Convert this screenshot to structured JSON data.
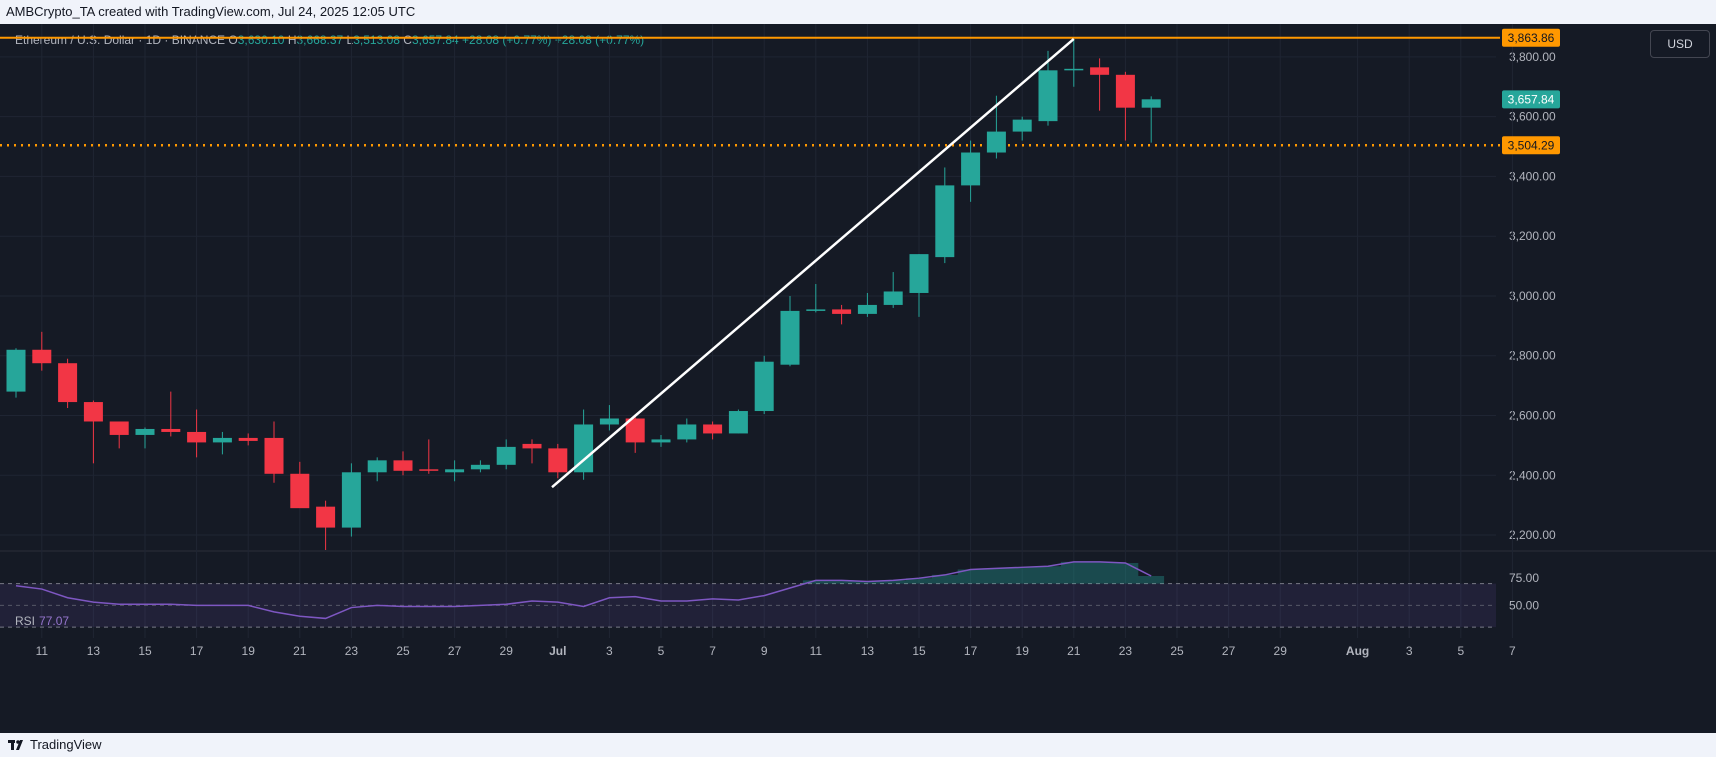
{
  "header": {
    "caption": "AMBCrypto_TA created with TradingView.com, Jul 24, 2025 12:05 UTC"
  },
  "legend": {
    "symbol": "Ethereum / U.S. Dollar · 1D · BINANCE",
    "open_label": "O",
    "open": "3,630.10",
    "high_label": "H",
    "high": "3,668.37",
    "low_label": "L",
    "low": "3,513.08",
    "close_label": "C",
    "close": "3,657.84",
    "change": "+28.08 (+0.77%)",
    "change2": "+28.08 (+0.77%)"
  },
  "currency_button": "USD",
  "rsi": {
    "label": "RSI",
    "value": "77.07"
  },
  "footer": {
    "brand": "TradingView"
  },
  "colors": {
    "up": "#26a69a",
    "down": "#f23645",
    "resistance": "#ff9800",
    "rsi_line": "#7e57c2",
    "background": "#151a25"
  },
  "chart_data": {
    "type": "candlestick",
    "y_ticks": [
      "3,800.00",
      "3,600.00",
      "3,400.00",
      "3,200.00",
      "3,000.00",
      "2,800.00",
      "2,600.00",
      "2,400.00",
      "2,200.00"
    ],
    "x_ticks": [
      "11",
      "13",
      "15",
      "17",
      "19",
      "21",
      "23",
      "25",
      "27",
      "29",
      "Jul",
      "3",
      "5",
      "7",
      "9",
      "11",
      "13",
      "15",
      "17",
      "19",
      "21",
      "23",
      "25",
      "27",
      "29",
      "Aug",
      "3",
      "5",
      "7"
    ],
    "ylim": [
      2150,
      3910
    ],
    "price_badges": {
      "resistance": "3,863.86",
      "last": "3,657.84",
      "support": "3,504.29"
    },
    "resistance_level": 3863.86,
    "support_level": 3504.29,
    "trendline": {
      "from": [
        "2025-06-30",
        2360
      ],
      "to": [
        "2025-07-21",
        3860
      ]
    },
    "candles": [
      {
        "date": "2025-06-10",
        "o": 2680,
        "h": 2825,
        "l": 2660,
        "c": 2820
      },
      {
        "date": "2025-06-11",
        "o": 2820,
        "h": 2880,
        "l": 2750,
        "c": 2775
      },
      {
        "date": "2025-06-12",
        "o": 2775,
        "h": 2790,
        "l": 2625,
        "c": 2645
      },
      {
        "date": "2025-06-13",
        "o": 2645,
        "h": 2650,
        "l": 2440,
        "c": 2580
      },
      {
        "date": "2025-06-14",
        "o": 2580,
        "h": 2580,
        "l": 2490,
        "c": 2535
      },
      {
        "date": "2025-06-15",
        "o": 2535,
        "h": 2560,
        "l": 2490,
        "c": 2555
      },
      {
        "date": "2025-06-16",
        "o": 2555,
        "h": 2680,
        "l": 2530,
        "c": 2545
      },
      {
        "date": "2025-06-17",
        "o": 2545,
        "h": 2620,
        "l": 2460,
        "c": 2510
      },
      {
        "date": "2025-06-18",
        "o": 2510,
        "h": 2545,
        "l": 2470,
        "c": 2525
      },
      {
        "date": "2025-06-19",
        "o": 2525,
        "h": 2540,
        "l": 2500,
        "c": 2515
      },
      {
        "date": "2025-06-20",
        "o": 2525,
        "h": 2580,
        "l": 2375,
        "c": 2405
      },
      {
        "date": "2025-06-21",
        "o": 2405,
        "h": 2445,
        "l": 2295,
        "c": 2290
      },
      {
        "date": "2025-06-22",
        "o": 2295,
        "h": 2315,
        "l": 2150,
        "c": 2225
      },
      {
        "date": "2025-06-23",
        "o": 2225,
        "h": 2440,
        "l": 2195,
        "c": 2410
      },
      {
        "date": "2025-06-24",
        "o": 2410,
        "h": 2460,
        "l": 2380,
        "c": 2450
      },
      {
        "date": "2025-06-25",
        "o": 2450,
        "h": 2480,
        "l": 2400,
        "c": 2415
      },
      {
        "date": "2025-06-26",
        "o": 2420,
        "h": 2520,
        "l": 2405,
        "c": 2415
      },
      {
        "date": "2025-06-27",
        "o": 2410,
        "h": 2450,
        "l": 2380,
        "c": 2420
      },
      {
        "date": "2025-06-28",
        "o": 2420,
        "h": 2450,
        "l": 2410,
        "c": 2435
      },
      {
        "date": "2025-06-29",
        "o": 2435,
        "h": 2520,
        "l": 2420,
        "c": 2495
      },
      {
        "date": "2025-06-30",
        "o": 2505,
        "h": 2520,
        "l": 2440,
        "c": 2490
      },
      {
        "date": "2025-07-01",
        "o": 2490,
        "h": 2505,
        "l": 2390,
        "c": 2410
      },
      {
        "date": "2025-07-02",
        "o": 2410,
        "h": 2620,
        "l": 2385,
        "c": 2570
      },
      {
        "date": "2025-07-03",
        "o": 2570,
        "h": 2635,
        "l": 2550,
        "c": 2590
      },
      {
        "date": "2025-07-04",
        "o": 2590,
        "h": 2600,
        "l": 2475,
        "c": 2510
      },
      {
        "date": "2025-07-05",
        "o": 2510,
        "h": 2535,
        "l": 2495,
        "c": 2520
      },
      {
        "date": "2025-07-06",
        "o": 2520,
        "h": 2590,
        "l": 2510,
        "c": 2570
      },
      {
        "date": "2025-07-07",
        "o": 2570,
        "h": 2580,
        "l": 2520,
        "c": 2540
      },
      {
        "date": "2025-07-08",
        "o": 2540,
        "h": 2620,
        "l": 2540,
        "c": 2615
      },
      {
        "date": "2025-07-09",
        "o": 2615,
        "h": 2800,
        "l": 2605,
        "c": 2780
      },
      {
        "date": "2025-07-10",
        "o": 2770,
        "h": 3000,
        "l": 2765,
        "c": 2950
      },
      {
        "date": "2025-07-11",
        "o": 2950,
        "h": 3040,
        "l": 2945,
        "c": 2955
      },
      {
        "date": "2025-07-12",
        "o": 2955,
        "h": 2970,
        "l": 2905,
        "c": 2940
      },
      {
        "date": "2025-07-13",
        "o": 2940,
        "h": 3010,
        "l": 2930,
        "c": 2970
      },
      {
        "date": "2025-07-14",
        "o": 2970,
        "h": 3080,
        "l": 2960,
        "c": 3015
      },
      {
        "date": "2025-07-15",
        "o": 3010,
        "h": 3140,
        "l": 2930,
        "c": 3140
      },
      {
        "date": "2025-07-16",
        "o": 3130,
        "h": 3430,
        "l": 3110,
        "c": 3370
      },
      {
        "date": "2025-07-17",
        "o": 3370,
        "h": 3520,
        "l": 3315,
        "c": 3480
      },
      {
        "date": "2025-07-18",
        "o": 3480,
        "h": 3670,
        "l": 3460,
        "c": 3550
      },
      {
        "date": "2025-07-19",
        "o": 3550,
        "h": 3600,
        "l": 3520,
        "c": 3590
      },
      {
        "date": "2025-07-20",
        "o": 3585,
        "h": 3820,
        "l": 3570,
        "c": 3755
      },
      {
        "date": "2025-07-21",
        "o": 3755,
        "h": 3860,
        "l": 3700,
        "c": 3760
      },
      {
        "date": "2025-07-22",
        "o": 3765,
        "h": 3795,
        "l": 3620,
        "c": 3740
      },
      {
        "date": "2025-07-23",
        "o": 3740,
        "h": 3750,
        "l": 3520,
        "c": 3630
      },
      {
        "date": "2025-07-24",
        "o": 3630,
        "h": 3668,
        "l": 3513,
        "c": 3658
      }
    ],
    "rsi_ticks": [
      "75.00",
      "50.00"
    ],
    "rsi_ylim": [
      20,
      100
    ],
    "rsi_values": [
      68,
      65,
      57,
      53,
      51,
      51,
      51,
      50,
      50,
      50,
      44,
      40,
      38,
      48,
      50,
      49,
      49,
      49,
      50,
      51,
      54,
      53,
      49,
      57,
      58,
      54,
      54,
      56,
      55,
      59,
      66,
      73,
      73,
      72,
      73,
      75,
      78,
      83,
      84,
      85,
      86,
      90,
      90,
      89,
      77
    ]
  }
}
